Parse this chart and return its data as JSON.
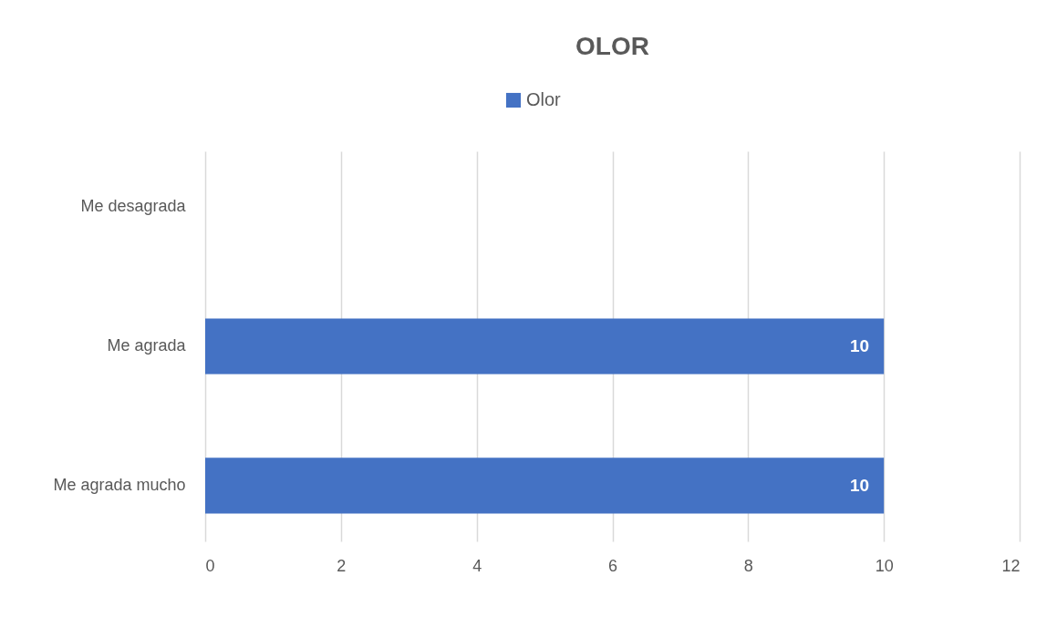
{
  "chart_data": {
    "type": "bar",
    "orientation": "horizontal",
    "title": "OLOR",
    "categories": [
      "Me desagrada",
      "Me agrada",
      "Me agrada mucho"
    ],
    "series": [
      {
        "name": "Olor",
        "color": "#4472c4",
        "values": [
          null,
          10,
          10
        ]
      }
    ],
    "xlim": [
      0,
      12
    ],
    "xticks": [
      0,
      2,
      4,
      6,
      8,
      10,
      12
    ],
    "grid": "x",
    "legend": "top",
    "data_labels": true
  }
}
